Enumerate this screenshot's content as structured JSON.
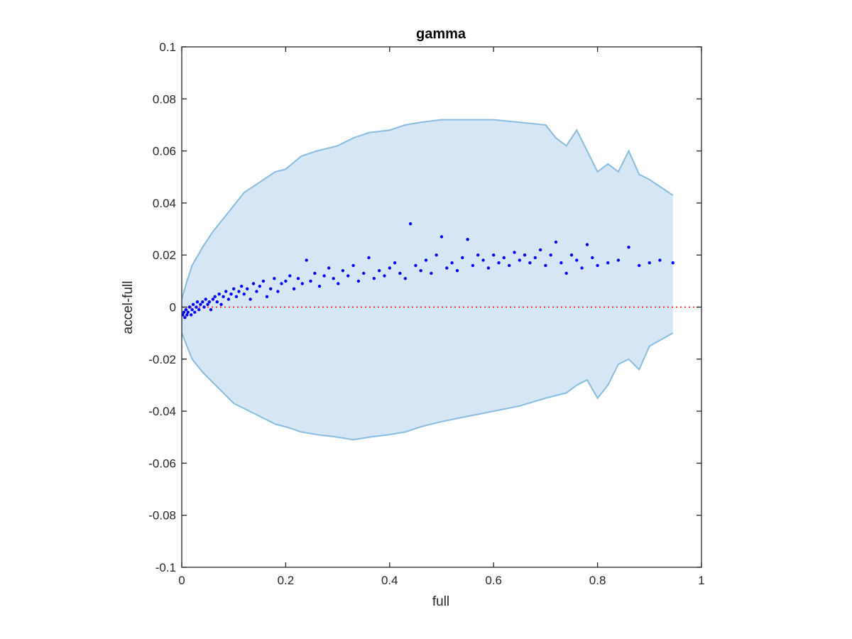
{
  "chart_data": {
    "type": "scatter",
    "title": "gamma",
    "xlabel": "full",
    "ylabel": "accel-full",
    "xlim": [
      0,
      1
    ],
    "ylim": [
      -0.1,
      0.1
    ],
    "xticks": [
      0,
      0.2,
      0.4,
      0.6,
      0.8,
      1
    ],
    "xtick_labels": [
      "0",
      "0.2",
      "0.4",
      "0.6",
      "0.8",
      "1"
    ],
    "yticks": [
      -0.1,
      -0.08,
      -0.06,
      -0.04,
      -0.02,
      0,
      0.02,
      0.04,
      0.06,
      0.08,
      0.1
    ],
    "ytick_labels": [
      "-0.1",
      "-0.08",
      "-0.06",
      "-0.04",
      "-0.02",
      "0",
      "0.02",
      "0.04",
      "0.06",
      "0.08",
      "0.1"
    ],
    "grid": false,
    "colors": {
      "points": "#0000ff",
      "band_fill": "#d6e6f4",
      "band_edge": "#88bde0",
      "reference_line": "#ff0000"
    },
    "reference_line": {
      "y": 0,
      "style": "dotted"
    },
    "band_upper": {
      "x": [
        0,
        0.01,
        0.02,
        0.04,
        0.06,
        0.08,
        0.1,
        0.12,
        0.15,
        0.18,
        0.2,
        0.23,
        0.26,
        0.3,
        0.33,
        0.36,
        0.4,
        0.43,
        0.46,
        0.5,
        0.55,
        0.6,
        0.65,
        0.7,
        0.72,
        0.74,
        0.76,
        0.78,
        0.8,
        0.82,
        0.84,
        0.86,
        0.88,
        0.9,
        0.945
      ],
      "y": [
        0.003,
        0.01,
        0.016,
        0.023,
        0.029,
        0.034,
        0.039,
        0.044,
        0.048,
        0.052,
        0.053,
        0.058,
        0.06,
        0.062,
        0.065,
        0.067,
        0.068,
        0.07,
        0.071,
        0.072,
        0.072,
        0.072,
        0.071,
        0.07,
        0.065,
        0.062,
        0.068,
        0.06,
        0.052,
        0.055,
        0.052,
        0.06,
        0.051,
        0.049,
        0.043
      ]
    },
    "band_lower": {
      "x": [
        0,
        0.01,
        0.02,
        0.04,
        0.06,
        0.08,
        0.1,
        0.12,
        0.15,
        0.18,
        0.2,
        0.23,
        0.26,
        0.3,
        0.33,
        0.36,
        0.4,
        0.43,
        0.46,
        0.5,
        0.55,
        0.6,
        0.65,
        0.7,
        0.72,
        0.74,
        0.76,
        0.78,
        0.8,
        0.82,
        0.84,
        0.86,
        0.88,
        0.9,
        0.945
      ],
      "y": [
        -0.01,
        -0.015,
        -0.02,
        -0.025,
        -0.029,
        -0.033,
        -0.037,
        -0.039,
        -0.042,
        -0.045,
        -0.046,
        -0.048,
        -0.049,
        -0.05,
        -0.051,
        -0.05,
        -0.049,
        -0.048,
        -0.046,
        -0.044,
        -0.042,
        -0.04,
        -0.038,
        -0.035,
        -0.034,
        -0.033,
        -0.03,
        -0.028,
        -0.035,
        -0.03,
        -0.022,
        -0.02,
        -0.024,
        -0.015,
        -0.01
      ]
    },
    "points": {
      "x": [
        0.002,
        0.004,
        0.006,
        0.008,
        0.01,
        0.012,
        0.015,
        0.018,
        0.02,
        0.022,
        0.025,
        0.028,
        0.03,
        0.033,
        0.036,
        0.04,
        0.043,
        0.046,
        0.05,
        0.053,
        0.056,
        0.06,
        0.064,
        0.068,
        0.072,
        0.076,
        0.08,
        0.085,
        0.09,
        0.095,
        0.1,
        0.105,
        0.11,
        0.115,
        0.12,
        0.126,
        0.132,
        0.138,
        0.144,
        0.15,
        0.157,
        0.164,
        0.171,
        0.178,
        0.185,
        0.192,
        0.2,
        0.208,
        0.216,
        0.224,
        0.232,
        0.24,
        0.248,
        0.256,
        0.265,
        0.274,
        0.283,
        0.292,
        0.301,
        0.31,
        0.32,
        0.33,
        0.34,
        0.35,
        0.36,
        0.37,
        0.38,
        0.39,
        0.4,
        0.41,
        0.42,
        0.43,
        0.44,
        0.45,
        0.46,
        0.47,
        0.48,
        0.49,
        0.5,
        0.51,
        0.52,
        0.53,
        0.54,
        0.55,
        0.56,
        0.57,
        0.58,
        0.59,
        0.6,
        0.61,
        0.62,
        0.63,
        0.64,
        0.65,
        0.66,
        0.67,
        0.68,
        0.69,
        0.7,
        0.71,
        0.72,
        0.73,
        0.74,
        0.75,
        0.76,
        0.77,
        0.78,
        0.79,
        0.8,
        0.82,
        0.84,
        0.86,
        0.88,
        0.9,
        0.92,
        0.945
      ],
      "y": [
        -0.003,
        -0.002,
        -0.004,
        -0.001,
        -0.003,
        -0.002,
        0.0,
        -0.003,
        -0.001,
        0.001,
        -0.002,
        0.0,
        0.002,
        -0.001,
        0.001,
        0.002,
        0.0,
        0.003,
        0.001,
        0.002,
        -0.001,
        0.003,
        0.004,
        0.002,
        0.005,
        0.001,
        0.004,
        0.006,
        0.003,
        0.005,
        0.007,
        0.004,
        0.006,
        0.008,
        0.005,
        0.007,
        0.003,
        0.009,
        0.006,
        0.008,
        0.01,
        0.004,
        0.007,
        0.011,
        0.006,
        0.009,
        0.01,
        0.012,
        0.007,
        0.011,
        0.009,
        0.018,
        0.01,
        0.013,
        0.008,
        0.012,
        0.015,
        0.011,
        0.009,
        0.014,
        0.012,
        0.016,
        0.01,
        0.013,
        0.019,
        0.011,
        0.014,
        0.012,
        0.015,
        0.017,
        0.013,
        0.011,
        0.032,
        0.016,
        0.014,
        0.018,
        0.013,
        0.02,
        0.027,
        0.015,
        0.017,
        0.014,
        0.019,
        0.026,
        0.016,
        0.02,
        0.018,
        0.015,
        0.02,
        0.017,
        0.019,
        0.016,
        0.021,
        0.018,
        0.02,
        0.017,
        0.019,
        0.022,
        0.016,
        0.02,
        0.025,
        0.017,
        0.013,
        0.02,
        0.018,
        0.015,
        0.024,
        0.019,
        0.016,
        0.017,
        0.018,
        0.023,
        0.016,
        0.017,
        0.018,
        0.017
      ]
    }
  }
}
